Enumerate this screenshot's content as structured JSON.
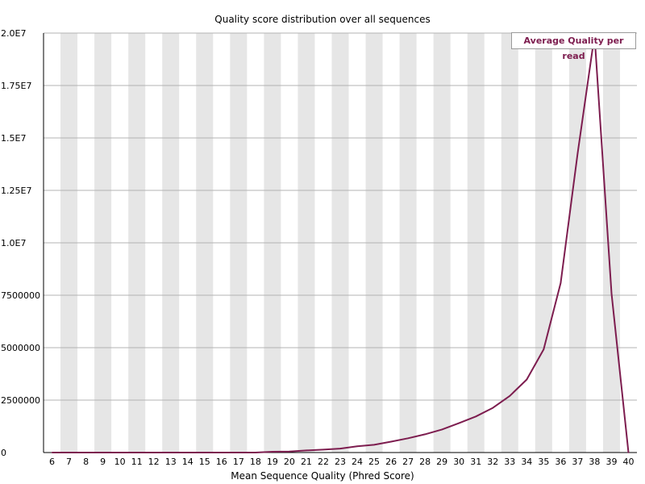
{
  "chart_data": {
    "type": "line",
    "title": "Quality score distribution over all sequences",
    "xlabel": "Mean Sequence Quality (Phred Score)",
    "ylabel": "",
    "categories": [
      "6",
      "7",
      "8",
      "9",
      "10",
      "11",
      "12",
      "13",
      "14",
      "15",
      "16",
      "17",
      "18",
      "19",
      "20",
      "21",
      "22",
      "23",
      "24",
      "25",
      "26",
      "27",
      "28",
      "29",
      "30",
      "31",
      "32",
      "33",
      "34",
      "35",
      "36",
      "37",
      "38",
      "39",
      "40"
    ],
    "y_tick_labels": [
      "0",
      "2500000",
      "5000000",
      "7500000",
      "1.0E7",
      "1.25E7",
      "1.5E7",
      "1.75E7",
      "2.0E7"
    ],
    "y_tick_values": [
      0,
      2500000,
      5000000,
      7500000,
      10000000,
      12500000,
      15000000,
      17500000,
      20000000
    ],
    "ylim": [
      0,
      20000000
    ],
    "grid": true,
    "legend_position": "top-right",
    "series": [
      {
        "name": "Average Quality per read",
        "color": "#7d1d4f",
        "values": [
          0,
          0,
          0,
          0,
          0,
          0,
          0,
          0,
          0,
          0,
          0,
          0,
          0,
          40000,
          50000,
          100000,
          140000,
          190000,
          300000,
          370000,
          520000,
          680000,
          870000,
          1100000,
          1400000,
          1720000,
          2130000,
          2700000,
          3480000,
          4920000,
          8080000,
          14250000,
          19900000,
          7580000,
          0
        ]
      }
    ],
    "stripe_color": "#e6e6e6",
    "gridline_color": "#b3b3b3"
  }
}
